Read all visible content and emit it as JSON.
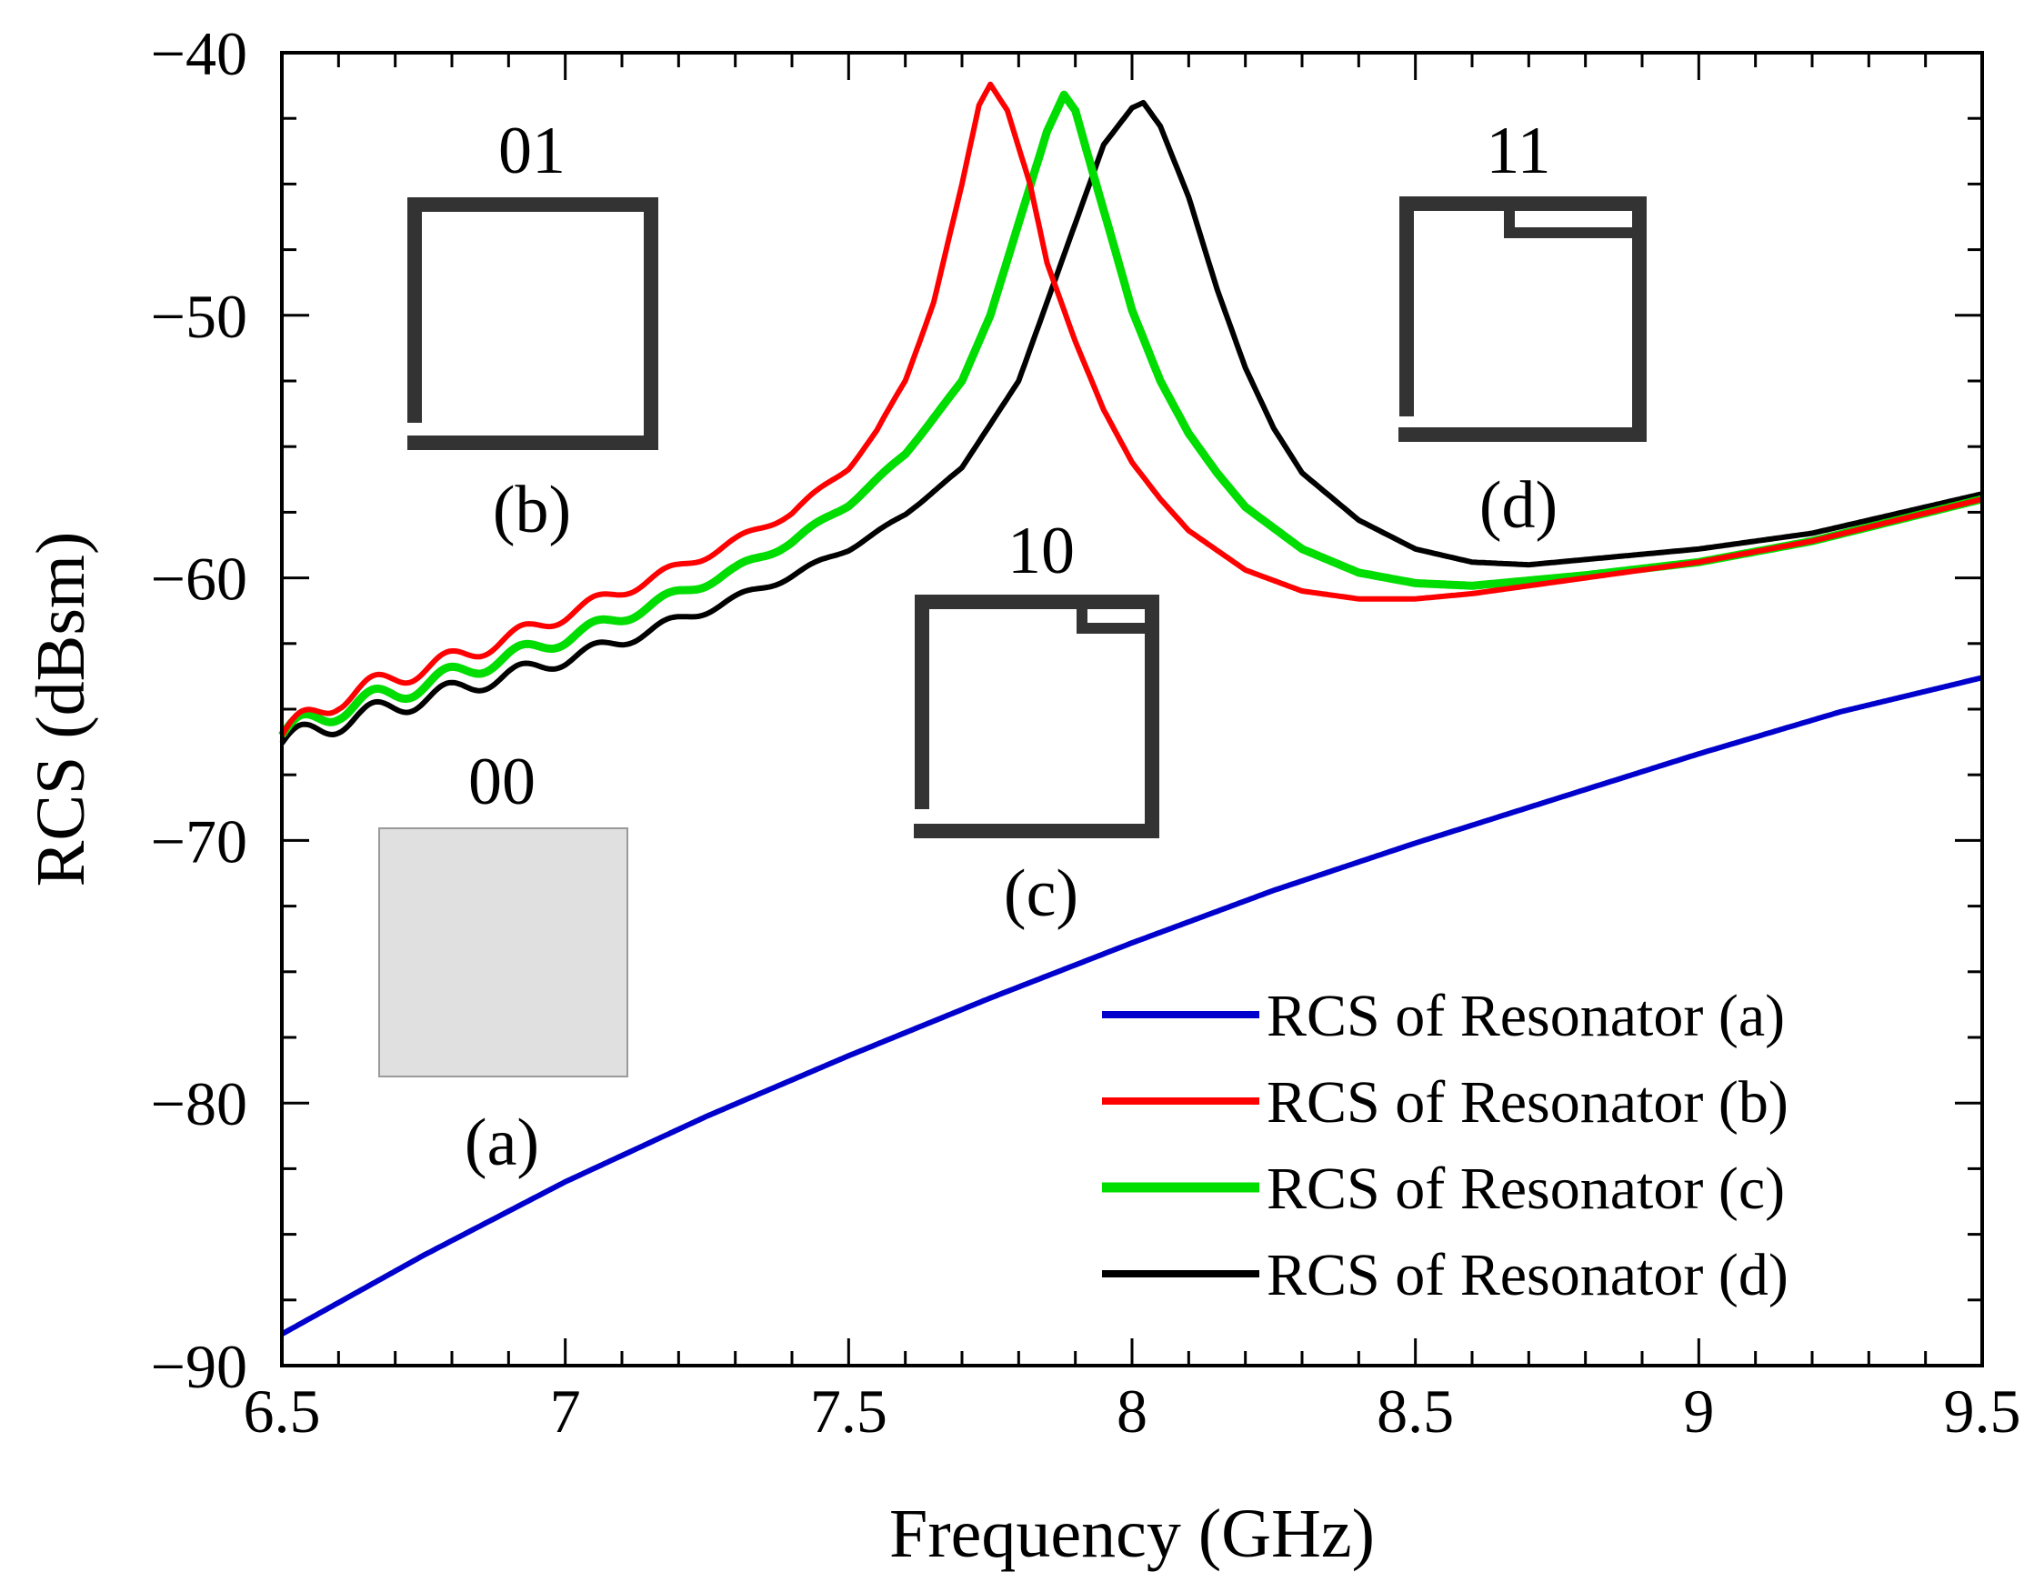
{
  "chart_data": {
    "type": "line",
    "title": "",
    "xlabel": "Frequency (GHz)",
    "ylabel": "RCS (dBsm)",
    "xlim": [
      6.5,
      9.5
    ],
    "ylim": [
      -90,
      -40
    ],
    "xticks": [
      6.5,
      7,
      7.5,
      8,
      8.5,
      9,
      9.5
    ],
    "xtick_labels": [
      "6.5",
      "7",
      "7.5",
      "8",
      "8.5",
      "9",
      "9.5"
    ],
    "yticks": [
      -40,
      -50,
      -60,
      -70,
      -80,
      -90
    ],
    "ytick_labels": [
      "−40",
      "−50",
      "−60",
      "−70",
      "−80",
      "−90"
    ],
    "grid": false,
    "legend_position": "bottom-right",
    "series": [
      {
        "name": "RCS of Resonator (a)",
        "color": "#0000cc",
        "x": [
          6.5,
          6.75,
          7.0,
          7.25,
          7.5,
          7.75,
          8.0,
          8.25,
          8.5,
          8.75,
          9.0,
          9.25,
          9.5
        ],
        "y": [
          -88.8,
          -85.8,
          -83.0,
          -80.5,
          -78.2,
          -76.0,
          -73.9,
          -71.9,
          -70.1,
          -68.4,
          -66.7,
          -65.1,
          -63.8
        ]
      },
      {
        "name": "RCS of Resonator (b)",
        "color": "#ff0000",
        "x": [
          6.5,
          6.6,
          6.7,
          6.8,
          6.9,
          7.0,
          7.1,
          7.2,
          7.3,
          7.4,
          7.5,
          7.55,
          7.6,
          7.65,
          7.7,
          7.73,
          7.75,
          7.78,
          7.82,
          7.85,
          7.9,
          7.95,
          8.0,
          8.05,
          8.1,
          8.2,
          8.3,
          8.4,
          8.5,
          8.6,
          8.7,
          8.8,
          9.0,
          9.2,
          9.5
        ],
        "y": [
          -66.0,
          -64.6,
          -63.8,
          -63.1,
          -62.3,
          -61.4,
          -60.5,
          -59.6,
          -58.6,
          -57.5,
          -55.8,
          -54.4,
          -52.5,
          -49.5,
          -45.0,
          -42.0,
          -41.2,
          -42.2,
          -45.0,
          -48.0,
          -51.0,
          -53.6,
          -55.6,
          -57.0,
          -58.2,
          -59.7,
          -60.5,
          -60.8,
          -60.8,
          -60.6,
          -60.3,
          -60.0,
          -59.4,
          -58.6,
          -57.0
        ]
      },
      {
        "name": "RCS of Resonator (c)",
        "color": "#00dd00",
        "x": [
          6.5,
          6.6,
          6.7,
          6.8,
          6.9,
          7.0,
          7.1,
          7.2,
          7.3,
          7.4,
          7.5,
          7.6,
          7.7,
          7.75,
          7.8,
          7.85,
          7.88,
          7.9,
          7.93,
          7.97,
          8.0,
          8.05,
          8.1,
          8.15,
          8.2,
          8.3,
          8.4,
          8.5,
          8.6,
          8.7,
          8.8,
          9.0,
          9.2,
          9.5
        ],
        "y": [
          -66.0,
          -65.0,
          -64.4,
          -63.7,
          -63.0,
          -62.3,
          -61.5,
          -60.6,
          -59.7,
          -58.6,
          -57.2,
          -55.3,
          -52.5,
          -50.0,
          -46.5,
          -43.0,
          -41.6,
          -42.2,
          -44.5,
          -47.5,
          -49.8,
          -52.5,
          -54.5,
          -56.0,
          -57.3,
          -58.9,
          -59.8,
          -60.2,
          -60.3,
          -60.1,
          -59.9,
          -59.4,
          -58.6,
          -57.0
        ]
      },
      {
        "name": "RCS of Resonator (d)",
        "color": "#000000",
        "x": [
          6.5,
          6.6,
          6.7,
          6.8,
          6.9,
          7.0,
          7.1,
          7.2,
          7.3,
          7.4,
          7.5,
          7.6,
          7.7,
          7.8,
          7.85,
          7.9,
          7.95,
          8.0,
          8.02,
          8.05,
          8.1,
          8.15,
          8.2,
          8.25,
          8.3,
          8.4,
          8.5,
          8.6,
          8.7,
          8.8,
          9.0,
          9.2,
          9.5
        ],
        "y": [
          -66.3,
          -65.5,
          -64.9,
          -64.3,
          -63.7,
          -63.1,
          -62.4,
          -61.6,
          -60.8,
          -59.9,
          -58.9,
          -57.6,
          -55.8,
          -52.5,
          -49.5,
          -46.5,
          -43.5,
          -42.1,
          -41.9,
          -42.8,
          -45.5,
          -49.0,
          -52.0,
          -54.3,
          -56.0,
          -57.8,
          -58.9,
          -59.4,
          -59.5,
          -59.3,
          -58.9,
          -58.3,
          -56.8
        ]
      }
    ]
  },
  "insets": [
    {
      "code": "00",
      "label": "(a)"
    },
    {
      "code": "01",
      "label": "(b)"
    },
    {
      "code": "10",
      "label": "(c)"
    },
    {
      "code": "11",
      "label": "(d)"
    }
  ]
}
